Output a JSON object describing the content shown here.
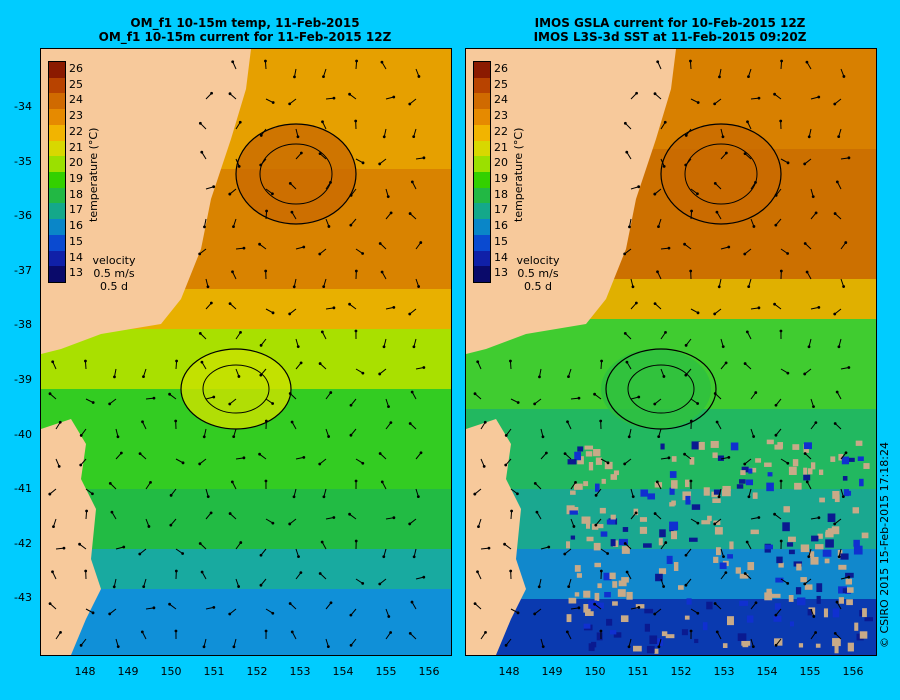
{
  "left": {
    "title_line1": "OM_f1 10-15m temp, 11-Feb-2015",
    "title_line2": "OM_f1 10-15m current for 11-Feb-2015 12Z"
  },
  "right": {
    "title_line1": "IMOS GSLA current for 10-Feb-2015 12Z",
    "title_line2": "IMOS L3S-3d SST at 11-Feb-2015 09:20Z"
  },
  "colorbar": {
    "title": "temperature (°C)",
    "ticks": [
      "26",
      "25",
      "24",
      "23",
      "22",
      "21",
      "20",
      "19",
      "18",
      "17",
      "16",
      "15",
      "14",
      "13"
    ],
    "colors": [
      "#8b1a00",
      "#b84300",
      "#d06a00",
      "#e68a00",
      "#f2b400",
      "#d8d800",
      "#9be000",
      "#33d000",
      "#22b844",
      "#14a88a",
      "#0a86c8",
      "#0a4ad0",
      "#1020a8",
      "#0a0a6a"
    ]
  },
  "velocity_legend": {
    "label": "velocity",
    "speed": "0.5 m/s",
    "duration": "0.5 d"
  },
  "axes": {
    "lat_labels": [
      "-34",
      "-35",
      "-36",
      "-37",
      "-38",
      "-39",
      "-40",
      "-41",
      "-42",
      "-43"
    ],
    "lon_labels": [
      "148",
      "149",
      "150",
      "151",
      "152",
      "153",
      "154",
      "155",
      "156"
    ]
  },
  "land_color": "#f7c99b",
  "copyright": "© CSIRO 2015   15-Feb-2015 17:18:24"
}
